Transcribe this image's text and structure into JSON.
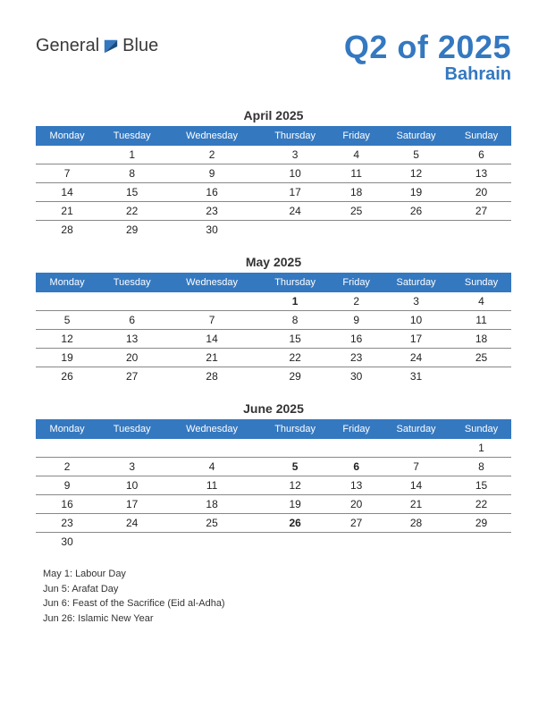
{
  "brand": {
    "part1": "General",
    "part2": "Blue"
  },
  "colors": {
    "primary": "#3478c0",
    "holiday": "#d32020",
    "header_bg": "#3478c0",
    "header_text": "#ffffff",
    "row_border": "#888888",
    "text": "#333333"
  },
  "title": "Q2 of 2025",
  "subtitle": "Bahrain",
  "weekdays": [
    "Monday",
    "Tuesday",
    "Wednesday",
    "Thursday",
    "Friday",
    "Saturday",
    "Sunday"
  ],
  "months": [
    {
      "name": "April 2025",
      "rows": [
        [
          "",
          "1",
          "2",
          "3",
          "4",
          "5",
          "6"
        ],
        [
          "7",
          "8",
          "9",
          "10",
          "11",
          "12",
          "13"
        ],
        [
          "14",
          "15",
          "16",
          "17",
          "18",
          "19",
          "20"
        ],
        [
          "21",
          "22",
          "23",
          "24",
          "25",
          "26",
          "27"
        ],
        [
          "28",
          "29",
          "30",
          "",
          "",
          "",
          ""
        ]
      ],
      "holidays": []
    },
    {
      "name": "May 2025",
      "rows": [
        [
          "",
          "",
          "",
          "1",
          "2",
          "3",
          "4"
        ],
        [
          "5",
          "6",
          "7",
          "8",
          "9",
          "10",
          "11"
        ],
        [
          "12",
          "13",
          "14",
          "15",
          "16",
          "17",
          "18"
        ],
        [
          "19",
          "20",
          "21",
          "22",
          "23",
          "24",
          "25"
        ],
        [
          "26",
          "27",
          "28",
          "29",
          "30",
          "31",
          ""
        ]
      ],
      "holidays": [
        "1"
      ]
    },
    {
      "name": "June 2025",
      "rows": [
        [
          "",
          "",
          "",
          "",
          "",
          "",
          "1"
        ],
        [
          "2",
          "3",
          "4",
          "5",
          "6",
          "7",
          "8"
        ],
        [
          "9",
          "10",
          "11",
          "12",
          "13",
          "14",
          "15"
        ],
        [
          "16",
          "17",
          "18",
          "19",
          "20",
          "21",
          "22"
        ],
        [
          "23",
          "24",
          "25",
          "26",
          "27",
          "28",
          "29"
        ],
        [
          "30",
          "",
          "",
          "",
          "",
          "",
          ""
        ]
      ],
      "holidays": [
        "5",
        "6",
        "26"
      ]
    }
  ],
  "holiday_notes": [
    "May 1: Labour Day",
    "Jun 5: Arafat Day",
    "Jun 6: Feast of the Sacrifice (Eid al-Adha)",
    "Jun 26: Islamic New Year"
  ]
}
